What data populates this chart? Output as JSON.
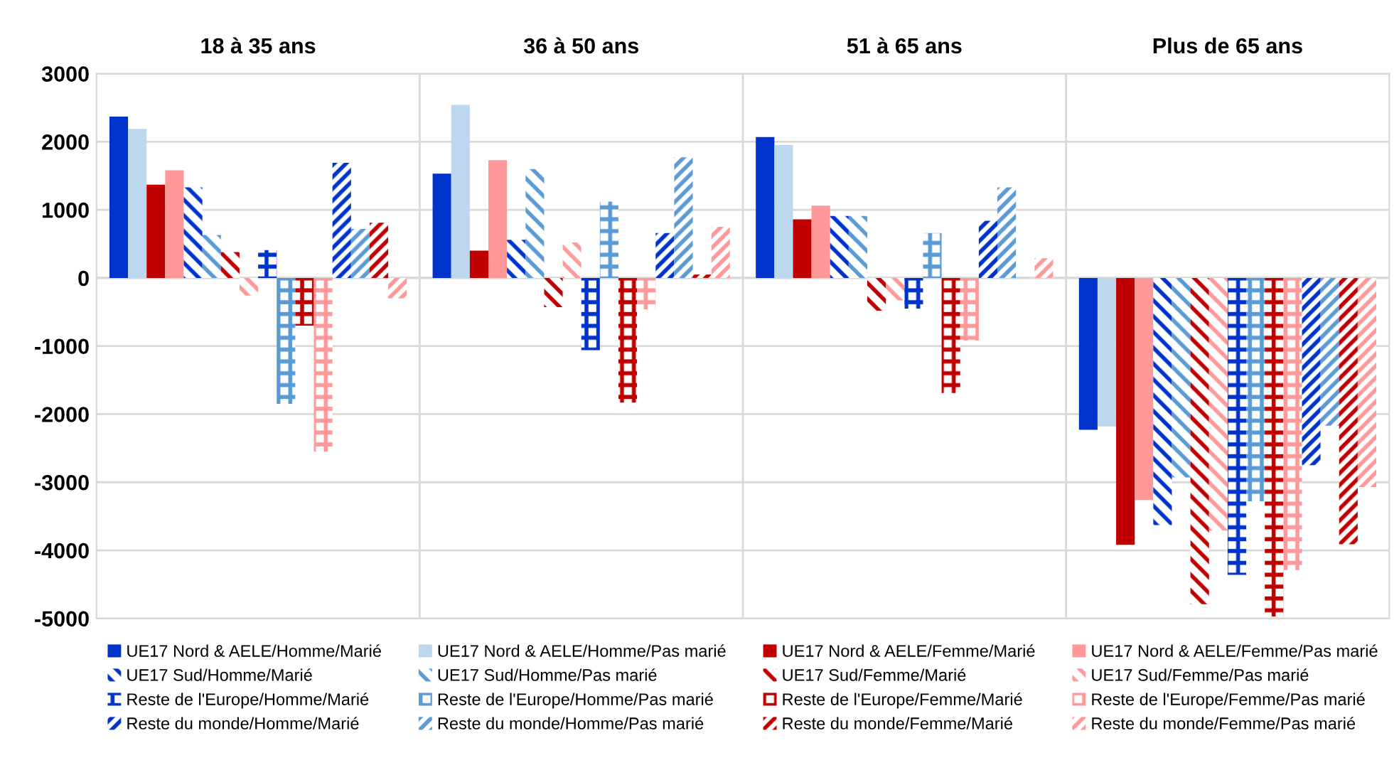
{
  "chart_data": {
    "type": "bar",
    "categories": [
      "18 à 35 ans",
      "36 à 50 ans",
      "51 à 65 ans",
      "Plus de 65 ans"
    ],
    "ylim": [
      -5000,
      3000
    ],
    "yticks": [
      -5000,
      -4000,
      -3000,
      -2000,
      -1000,
      0,
      1000,
      2000,
      3000
    ],
    "grid": "y",
    "legend": "bottom",
    "series": [
      {
        "name": "UE17 Nord & AELE/Homme/Marié",
        "color": "#0033cc",
        "values": [
          2370,
          1530,
          2070,
          -2230
        ]
      },
      {
        "name": "UE17 Nord & AELE/Homme/Pas marié",
        "color": "#bdd7ee",
        "values": [
          2190,
          2540,
          1950,
          -2180
        ]
      },
      {
        "name": "UE17 Nord & AELE/Femme/Marié",
        "color": "#c00000",
        "values": [
          1370,
          400,
          860,
          -3920
        ]
      },
      {
        "name": "UE17 Nord & AELE/Femme/Pas marié",
        "color": "#ff9999",
        "values": [
          1580,
          1730,
          1060,
          -3260
        ]
      },
      {
        "name": "UE17 Sud/Homme/Marié",
        "color": "#0033cc",
        "values": [
          1330,
          560,
          910,
          -3630
        ]
      },
      {
        "name": "UE17 Sud/Homme/Pas marié",
        "color": "#5b9bd5",
        "values": [
          630,
          1600,
          910,
          -2930
        ]
      },
      {
        "name": "UE17 Sud/Femme/Marié",
        "color": "#c00000",
        "values": [
          380,
          -430,
          -480,
          -4790
        ]
      },
      {
        "name": "UE17 Sud/Femme/Pas marié",
        "color": "#ff9999",
        "values": [
          -260,
          520,
          -330,
          -3710
        ]
      },
      {
        "name": "Reste de l'Europe/Homme/Marié",
        "color": "#0033cc",
        "values": [
          410,
          -1060,
          -450,
          -4360
        ]
      },
      {
        "name": "Reste de l'Europe/Homme/Pas marié",
        "color": "#5b9bd5",
        "values": [
          -1850,
          1120,
          660,
          -3280
        ]
      },
      {
        "name": "Reste de l'Europe/Femme/Marié",
        "color": "#c00000",
        "values": [
          -700,
          -1830,
          -1690,
          -4970
        ]
      },
      {
        "name": "Reste de l'Europe/Femme/Pas marié",
        "color": "#ff9999",
        "values": [
          -2550,
          -460,
          -920,
          -4290
        ]
      },
      {
        "name": "Reste du monde/Homme/Marié",
        "color": "#0033cc",
        "values": [
          1690,
          660,
          840,
          -2750
        ]
      },
      {
        "name": "Reste du monde/Homme/Pas marié",
        "color": "#5b9bd5",
        "values": [
          720,
          1770,
          1330,
          -2170
        ]
      },
      {
        "name": "Reste du monde/Femme/Marié",
        "color": "#c00000",
        "values": [
          810,
          50,
          0,
          -3910
        ]
      },
      {
        "name": "Reste du monde/Femme/Pas marié",
        "color": "#ff9999",
        "values": [
          -300,
          750,
          290,
          -3070
        ]
      }
    ]
  }
}
